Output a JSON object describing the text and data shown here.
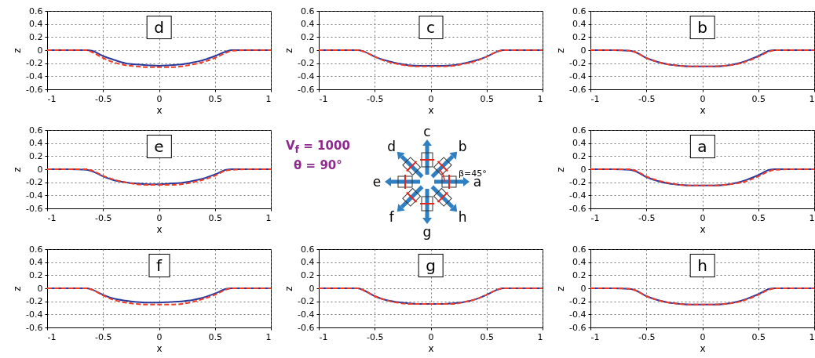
{
  "chart_data": [
    {
      "type": "line",
      "annotations": [
        "d"
      ],
      "xlabel": "x",
      "ylabel": "z",
      "xlim": [
        -1,
        1
      ],
      "ylim": [
        -0.6,
        0.6
      ],
      "xticks": [
        -1,
        -0.5,
        0,
        0.5,
        1
      ],
      "yticks": [
        -0.6,
        -0.4,
        -0.2,
        0,
        0.2,
        0.4,
        0.6
      ],
      "grid": true,
      "x": [
        -1,
        -0.8,
        -0.65,
        -0.6,
        -0.5,
        -0.4,
        -0.3,
        -0.2,
        -0.1,
        0,
        0.1,
        0.2,
        0.3,
        0.4,
        0.5,
        0.6,
        0.65,
        0.8,
        1
      ],
      "series": [
        {
          "color": "#2b3a9c",
          "line_style": "solid",
          "values": [
            0,
            0,
            0,
            -0.01,
            -0.09,
            -0.15,
            -0.2,
            -0.22,
            -0.23,
            -0.24,
            -0.23,
            -0.22,
            -0.19,
            -0.15,
            -0.09,
            -0.02,
            0,
            0,
            0
          ]
        },
        {
          "color": "#f03c24",
          "line_style": "dashed",
          "values": [
            0,
            0,
            0,
            -0.03,
            -0.12,
            -0.19,
            -0.23,
            -0.25,
            -0.26,
            -0.26,
            -0.26,
            -0.25,
            -0.22,
            -0.18,
            -0.12,
            -0.04,
            -0.01,
            0,
            0
          ]
        }
      ]
    },
    {
      "type": "line",
      "annotations": [
        "c"
      ],
      "xlabel": "x",
      "ylabel": "z",
      "xlim": [
        -1,
        1
      ],
      "ylim": [
        -0.6,
        0.6
      ],
      "xticks": [
        -1,
        -0.5,
        0,
        0.5,
        1
      ],
      "yticks": [
        -0.6,
        -0.4,
        -0.2,
        0,
        0.2,
        0.4,
        0.6
      ],
      "grid": true,
      "x": [
        -1,
        -0.8,
        -0.65,
        -0.6,
        -0.5,
        -0.4,
        -0.3,
        -0.2,
        -0.1,
        0,
        0.1,
        0.2,
        0.3,
        0.4,
        0.5,
        0.6,
        0.65,
        0.8,
        1
      ],
      "series": [
        {
          "color": "#2b3a9c",
          "line_style": "solid",
          "values": [
            0,
            0,
            0,
            -0.02,
            -0.1,
            -0.16,
            -0.2,
            -0.23,
            -0.24,
            -0.24,
            -0.24,
            -0.23,
            -0.2,
            -0.16,
            -0.1,
            -0.02,
            0,
            0,
            0
          ]
        },
        {
          "color": "#f03c24",
          "line_style": "dashed",
          "values": [
            0,
            0,
            0,
            -0.02,
            -0.1,
            -0.17,
            -0.21,
            -0.24,
            -0.25,
            -0.25,
            -0.25,
            -0.24,
            -0.21,
            -0.17,
            -0.1,
            -0.02,
            0,
            0,
            0
          ]
        }
      ]
    },
    {
      "type": "line",
      "annotations": [
        "b"
      ],
      "xlabel": "x",
      "ylabel": "z",
      "xlim": [
        -1,
        1
      ],
      "ylim": [
        -0.6,
        0.6
      ],
      "xticks": [
        -1,
        -0.5,
        0,
        0.5,
        1
      ],
      "yticks": [
        -0.6,
        -0.4,
        -0.2,
        0,
        0.2,
        0.4,
        0.6
      ],
      "grid": true,
      "x": [
        -1,
        -0.8,
        -0.65,
        -0.6,
        -0.5,
        -0.4,
        -0.3,
        -0.2,
        -0.1,
        0,
        0.1,
        0.2,
        0.3,
        0.4,
        0.5,
        0.6,
        0.65,
        0.8,
        1
      ],
      "series": [
        {
          "color": "#2b3a9c",
          "line_style": "solid",
          "values": [
            0,
            0,
            -0.01,
            -0.03,
            -0.12,
            -0.18,
            -0.22,
            -0.24,
            -0.25,
            -0.25,
            -0.25,
            -0.24,
            -0.21,
            -0.16,
            -0.09,
            -0.01,
            0,
            0,
            0
          ]
        },
        {
          "color": "#f03c24",
          "line_style": "dashed",
          "values": [
            0,
            0,
            -0.01,
            -0.03,
            -0.12,
            -0.18,
            -0.22,
            -0.24,
            -0.25,
            -0.25,
            -0.25,
            -0.24,
            -0.22,
            -0.17,
            -0.1,
            -0.02,
            0,
            0,
            0
          ]
        }
      ]
    },
    {
      "type": "line",
      "annotations": [
        "e"
      ],
      "xlabel": "x",
      "ylabel": "z",
      "xlim": [
        -1,
        1
      ],
      "ylim": [
        -0.6,
        0.6
      ],
      "xticks": [
        -1,
        -0.5,
        0,
        0.5,
        1
      ],
      "yticks": [
        -0.6,
        -0.4,
        -0.2,
        0,
        0.2,
        0.4,
        0.6
      ],
      "grid": true,
      "x": [
        -1,
        -0.8,
        -0.65,
        -0.6,
        -0.5,
        -0.4,
        -0.3,
        -0.2,
        -0.1,
        0,
        0.1,
        0.2,
        0.3,
        0.4,
        0.5,
        0.6,
        0.65,
        0.8,
        1
      ],
      "series": [
        {
          "color": "#2b3a9c",
          "line_style": "solid",
          "values": [
            0,
            0,
            -0.01,
            -0.03,
            -0.11,
            -0.17,
            -0.2,
            -0.22,
            -0.23,
            -0.23,
            -0.22,
            -0.21,
            -0.18,
            -0.14,
            -0.08,
            -0.01,
            0,
            0,
            0
          ]
        },
        {
          "color": "#f03c24",
          "line_style": "dashed",
          "values": [
            0,
            0,
            0,
            -0.02,
            -0.1,
            -0.16,
            -0.2,
            -0.23,
            -0.24,
            -0.24,
            -0.24,
            -0.23,
            -0.2,
            -0.16,
            -0.1,
            -0.02,
            -0.01,
            0,
            0
          ]
        }
      ]
    },
    {
      "type": "other",
      "annotations": [
        "V$_{f}$ = 1000",
        "θ = 90°",
        "a",
        "b",
        "c",
        "d",
        "e",
        "f",
        "g",
        "h",
        "β=45°"
      ]
    },
    {
      "type": "line",
      "annotations": [
        "a"
      ],
      "xlabel": "x",
      "ylabel": "z",
      "xlim": [
        -1,
        1
      ],
      "ylim": [
        -0.6,
        0.6
      ],
      "xticks": [
        -1,
        -0.5,
        0,
        0.5,
        1
      ],
      "yticks": [
        -0.6,
        -0.4,
        -0.2,
        0,
        0.2,
        0.4,
        0.6
      ],
      "grid": true,
      "x": [
        -1,
        -0.8,
        -0.65,
        -0.6,
        -0.5,
        -0.4,
        -0.3,
        -0.2,
        -0.1,
        0,
        0.1,
        0.2,
        0.3,
        0.4,
        0.5,
        0.6,
        0.65,
        0.8,
        1
      ],
      "series": [
        {
          "color": "#2b3a9c",
          "line_style": "solid",
          "values": [
            0,
            0,
            -0.01,
            -0.03,
            -0.12,
            -0.18,
            -0.22,
            -0.24,
            -0.25,
            -0.25,
            -0.25,
            -0.24,
            -0.21,
            -0.16,
            -0.09,
            -0.01,
            0,
            0,
            0
          ]
        },
        {
          "color": "#f03c24",
          "line_style": "dashed",
          "values": [
            0,
            0,
            0,
            -0.02,
            -0.11,
            -0.17,
            -0.21,
            -0.24,
            -0.25,
            -0.25,
            -0.25,
            -0.24,
            -0.22,
            -0.18,
            -0.11,
            -0.03,
            -0.01,
            0,
            0
          ]
        }
      ]
    },
    {
      "type": "line",
      "annotations": [
        "f"
      ],
      "xlabel": "x",
      "ylabel": "z",
      "xlim": [
        -1,
        1
      ],
      "ylim": [
        -0.6,
        0.6
      ],
      "xticks": [
        -1,
        -0.5,
        0,
        0.5,
        1
      ],
      "yticks": [
        -0.6,
        -0.4,
        -0.2,
        0,
        0.2,
        0.4,
        0.6
      ],
      "grid": true,
      "x": [
        -1,
        -0.8,
        -0.65,
        -0.6,
        -0.5,
        -0.4,
        -0.3,
        -0.2,
        -0.1,
        0,
        0.1,
        0.2,
        0.3,
        0.4,
        0.5,
        0.6,
        0.65,
        0.8,
        1
      ],
      "series": [
        {
          "color": "#2b3a9c",
          "line_style": "solid",
          "values": [
            0,
            0,
            0,
            -0.02,
            -0.1,
            -0.16,
            -0.19,
            -0.21,
            -0.22,
            -0.22,
            -0.21,
            -0.2,
            -0.18,
            -0.14,
            -0.08,
            -0.01,
            0,
            0,
            0
          ]
        },
        {
          "color": "#f03c24",
          "line_style": "dashed",
          "values": [
            0,
            0,
            0,
            -0.02,
            -0.11,
            -0.18,
            -0.22,
            -0.24,
            -0.25,
            -0.25,
            -0.25,
            -0.24,
            -0.21,
            -0.16,
            -0.1,
            -0.02,
            0,
            0,
            0
          ]
        }
      ]
    },
    {
      "type": "line",
      "annotations": [
        "g"
      ],
      "xlabel": "x",
      "ylabel": "z",
      "xlim": [
        -1,
        1
      ],
      "ylim": [
        -0.6,
        0.6
      ],
      "xticks": [
        -1,
        -0.5,
        0,
        0.5,
        1
      ],
      "yticks": [
        -0.6,
        -0.4,
        -0.2,
        0,
        0.2,
        0.4,
        0.6
      ],
      "grid": true,
      "x": [
        -1,
        -0.8,
        -0.65,
        -0.6,
        -0.5,
        -0.4,
        -0.3,
        -0.2,
        -0.1,
        0,
        0.1,
        0.2,
        0.3,
        0.4,
        0.5,
        0.6,
        0.65,
        0.8,
        1
      ],
      "series": [
        {
          "color": "#2b3a9c",
          "line_style": "solid",
          "values": [
            0,
            0,
            0,
            -0.03,
            -0.12,
            -0.18,
            -0.21,
            -0.23,
            -0.24,
            -0.24,
            -0.24,
            -0.23,
            -0.21,
            -0.17,
            -0.1,
            -0.02,
            0,
            0,
            0
          ]
        },
        {
          "color": "#f03c24",
          "line_style": "dashed",
          "values": [
            0,
            0,
            0,
            -0.03,
            -0.12,
            -0.18,
            -0.22,
            -0.24,
            -0.24,
            -0.24,
            -0.24,
            -0.24,
            -0.21,
            -0.17,
            -0.1,
            -0.02,
            0,
            0,
            0
          ]
        }
      ]
    },
    {
      "type": "line",
      "annotations": [
        "h"
      ],
      "xlabel": "x",
      "ylabel": "z",
      "xlim": [
        -1,
        1
      ],
      "ylim": [
        -0.6,
        0.6
      ],
      "xticks": [
        -1,
        -0.5,
        0,
        0.5,
        1
      ],
      "yticks": [
        -0.6,
        -0.4,
        -0.2,
        0,
        0.2,
        0.4,
        0.6
      ],
      "grid": true,
      "x": [
        -1,
        -0.8,
        -0.65,
        -0.6,
        -0.5,
        -0.4,
        -0.3,
        -0.2,
        -0.1,
        0,
        0.1,
        0.2,
        0.3,
        0.4,
        0.5,
        0.6,
        0.65,
        0.8,
        1
      ],
      "series": [
        {
          "color": "#2b3a9c",
          "line_style": "solid",
          "values": [
            0,
            0,
            -0.01,
            -0.03,
            -0.12,
            -0.18,
            -0.22,
            -0.24,
            -0.25,
            -0.25,
            -0.25,
            -0.24,
            -0.21,
            -0.16,
            -0.09,
            -0.01,
            0,
            0,
            0
          ]
        },
        {
          "color": "#f03c24",
          "line_style": "dashed",
          "values": [
            0,
            0,
            -0.01,
            -0.03,
            -0.12,
            -0.18,
            -0.22,
            -0.24,
            -0.25,
            -0.25,
            -0.25,
            -0.24,
            -0.22,
            -0.17,
            -0.1,
            -0.02,
            0,
            0,
            0
          ]
        }
      ]
    }
  ]
}
